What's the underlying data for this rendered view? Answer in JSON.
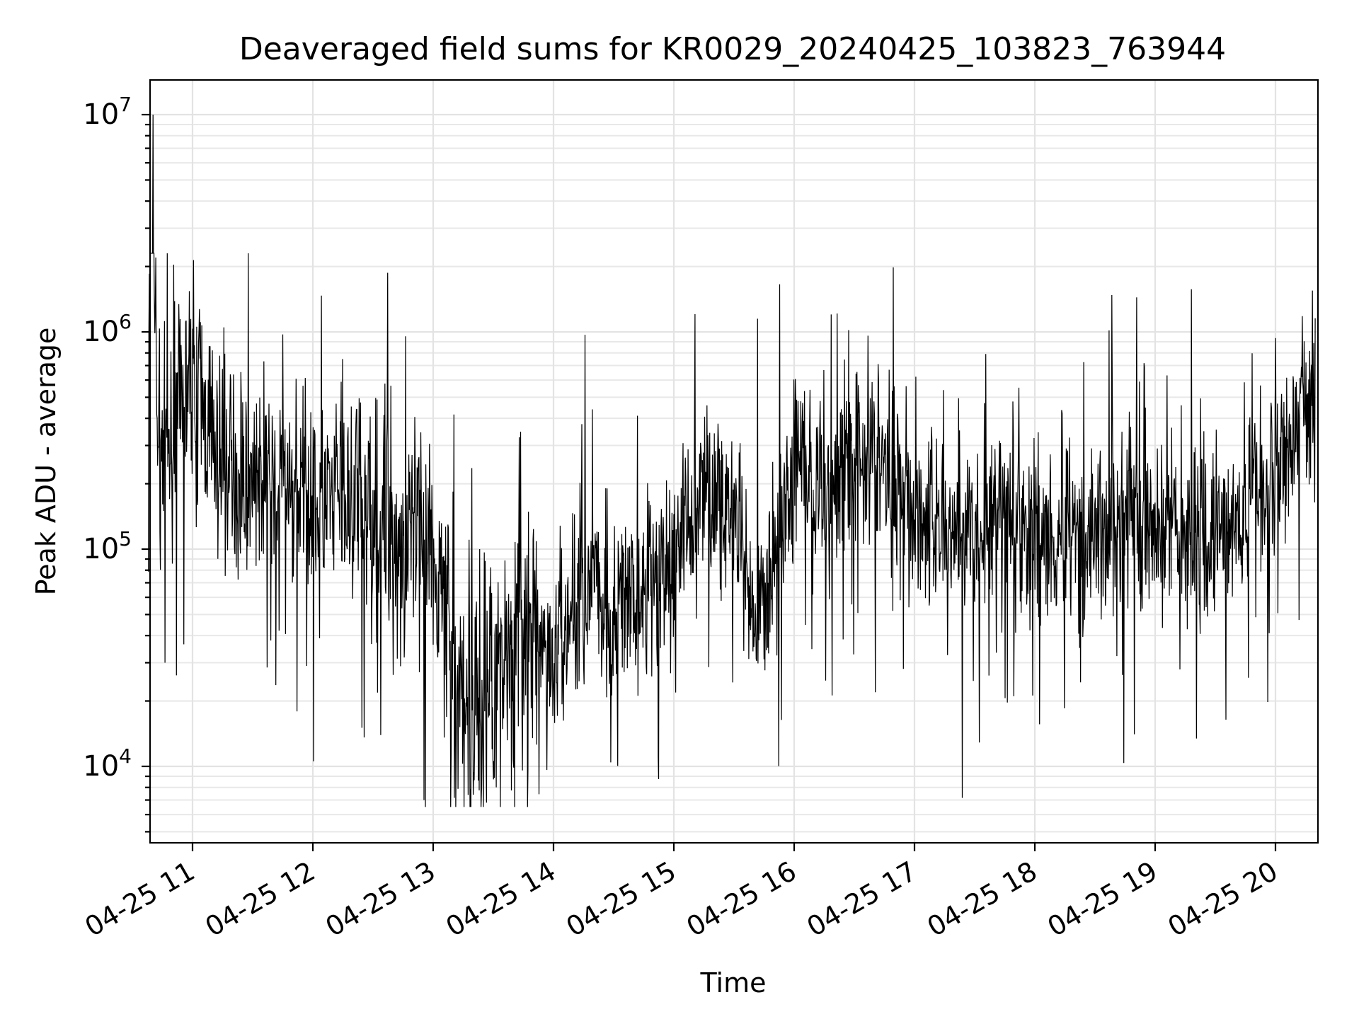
{
  "chart_data": {
    "type": "line",
    "title": "Deaveraged field sums for KR0029_20240425_103823_763944",
    "xlabel": "Time",
    "ylabel": "Peak ADU - average",
    "yscale": "log",
    "grid": true,
    "grid_minor": true,
    "ylim": [
      4500,
      15000000
    ],
    "xlim": [
      "2024-04-25 10:38:23",
      "2024-04-25 20:20:00"
    ],
    "x_ticks": [
      "04-25 11",
      "04-25 12",
      "04-25 13",
      "04-25 14",
      "04-25 15",
      "04-25 16",
      "04-25 17",
      "04-25 18",
      "04-25 19",
      "04-25 20"
    ],
    "y_ticks": [
      {
        "base": "10",
        "exp": "4",
        "value": 10000
      },
      {
        "base": "10",
        "exp": "5",
        "value": 100000
      },
      {
        "base": "10",
        "exp": "6",
        "value": 1000000
      },
      {
        "base": "10",
        "exp": "7",
        "value": 10000000
      }
    ],
    "series": [
      {
        "color": "#000000",
        "x": [
          "2024-04-25 10:38",
          "2024-04-25 10:40",
          "2024-04-25 10:42",
          "2024-04-25 10:45",
          "2024-04-25 10:50",
          "2024-04-25 10:55",
          "2024-04-25 11:00",
          "2024-04-25 11:10",
          "2024-04-25 11:20",
          "2024-04-25 11:30",
          "2024-04-25 11:45",
          "2024-04-25 12:00",
          "2024-04-25 12:15",
          "2024-04-25 12:30",
          "2024-04-25 12:45",
          "2024-04-25 13:00",
          "2024-04-25 13:10",
          "2024-04-25 13:20",
          "2024-04-25 13:30",
          "2024-04-25 13:45",
          "2024-04-25 14:00",
          "2024-04-25 14:15",
          "2024-04-25 14:30",
          "2024-04-25 14:45",
          "2024-04-25 15:00",
          "2024-04-25 15:15",
          "2024-04-25 15:30",
          "2024-04-25 15:40",
          "2024-04-25 15:50",
          "2024-04-25 16:00",
          "2024-04-25 16:15",
          "2024-04-25 16:30",
          "2024-04-25 16:45",
          "2024-04-25 17:00",
          "2024-04-25 17:15",
          "2024-04-25 17:30",
          "2024-04-25 17:45",
          "2024-04-25 18:00",
          "2024-04-25 18:15",
          "2024-04-25 18:30",
          "2024-04-25 18:45",
          "2024-04-25 19:00",
          "2024-04-25 19:15",
          "2024-04-25 19:30",
          "2024-04-25 19:45",
          "2024-04-25 19:55",
          "2024-04-25 20:05",
          "2024-04-25 20:15",
          "2024-04-25 20:20"
        ],
        "y": [
          500000,
          10000000,
          400000,
          350000,
          300000,
          500000,
          700000,
          300000,
          200000,
          220000,
          180000,
          180000,
          160000,
          150000,
          100000,
          120000,
          25000,
          20000,
          30000,
          40000,
          30000,
          70000,
          50000,
          60000,
          100000,
          200000,
          150000,
          35000,
          100000,
          250000,
          180000,
          300000,
          250000,
          150000,
          130000,
          110000,
          140000,
          120000,
          130000,
          120000,
          130000,
          120000,
          130000,
          110000,
          130000,
          180000,
          300000,
          450000,
          400000
        ]
      }
    ]
  }
}
